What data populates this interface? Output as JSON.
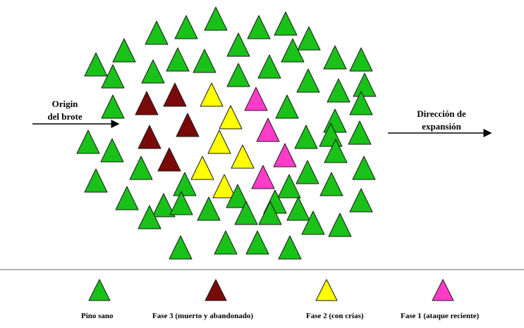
{
  "colors": {
    "healthy": "#19c119",
    "phase3": "#7a0a0a",
    "phase2": "#ffff00",
    "phase1": "#ff3cc8",
    "outline": "#1a1a1a"
  },
  "labels": {
    "origin_line1": "Origin",
    "origin_line2": "del brote",
    "direction_line1": "Dirección de",
    "direction_line2": "expansión"
  },
  "legend": {
    "healthy": "Pino sano",
    "phase3": "Fase 3 (muerto y abandonado)",
    "phase2": "Fase 2 (con crías)",
    "phase1": "Fase 1 (ataque reciente)"
  }
}
